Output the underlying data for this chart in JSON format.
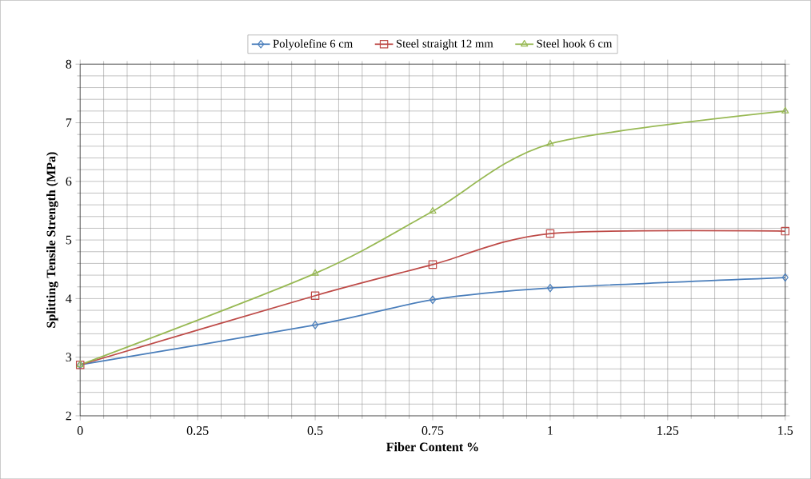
{
  "chart_data": {
    "type": "line",
    "xlabel": "Fiber Content %",
    "ylabel": "Splitting Tensile Strength (MPa)",
    "x": [
      0,
      0.5,
      0.75,
      1,
      1.5
    ],
    "series": [
      {
        "name": "Polyolefine 6 cm",
        "color": "#4a7ebb",
        "marker": "diamond",
        "values": [
          2.87,
          3.55,
          3.98,
          4.18,
          4.36
        ]
      },
      {
        "name": "Steel straight 12 mm",
        "color": "#be4b48",
        "marker": "square",
        "values": [
          2.87,
          4.05,
          4.58,
          5.11,
          5.15
        ]
      },
      {
        "name": "Steel hook 6 cm",
        "color": "#98b954",
        "marker": "triangle",
        "values": [
          2.87,
          4.43,
          5.49,
          6.64,
          7.2
        ]
      }
    ],
    "xlim": [
      0,
      1.5
    ],
    "xticks": [
      0,
      0.25,
      0.5,
      0.75,
      1,
      1.25,
      1.5
    ],
    "ylim": [
      2,
      8
    ],
    "yticks": [
      2,
      3,
      4,
      5,
      6,
      7,
      8
    ],
    "grid": true,
    "legend": "top",
    "line_style": "solid"
  }
}
